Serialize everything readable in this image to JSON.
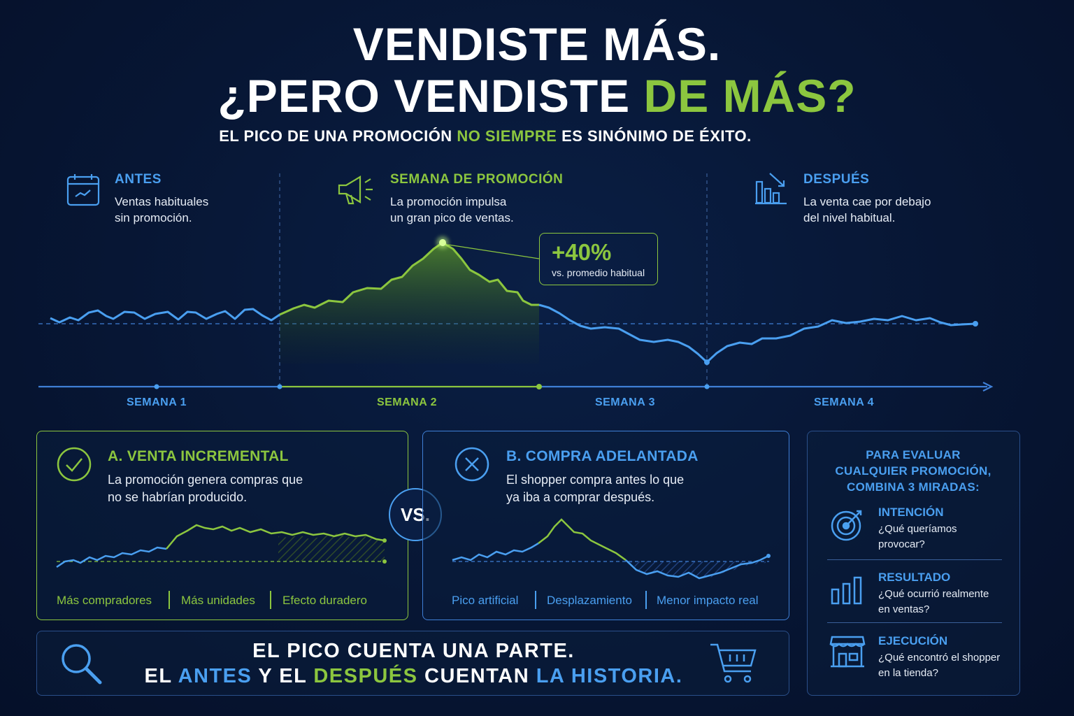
{
  "title": {
    "line1": "VENDISTE MÁS.",
    "line2_prefix": "¿PERO VENDISTE ",
    "line2_highlight": "DE MÁS?"
  },
  "subtitle": {
    "part1": "EL PICO DE UNA PROMOCIÓN ",
    "highlight": "NO SIEMPRE",
    "part2": " ES SINÓNIMO DE ÉXITO."
  },
  "sections": [
    {
      "icon": "calendar-icon",
      "title": "ANTES",
      "desc_line1": "Ventas habituales",
      "desc_line2": "sin promoción."
    },
    {
      "icon": "megaphone-icon",
      "title": "SEMANA DE PROMOCIÓN",
      "desc_line1": "La promoción impulsa",
      "desc_line2": "un gran pico de ventas."
    },
    {
      "icon": "declining-bars-icon",
      "title": "DESPUÉS",
      "desc_line1": "La venta cae por debajo",
      "desc_line2": "del nivel habitual."
    }
  ],
  "callout": {
    "value": "+40%",
    "label": "vs. promedio habitual"
  },
  "weeks": [
    "SEMANA 1",
    "SEMANA 2",
    "SEMANA 3",
    "SEMANA 4"
  ],
  "cards": {
    "a": {
      "icon": "check-circle-icon",
      "title": "A. VENTA INCREMENTAL",
      "desc_line1": "La promoción genera compras que",
      "desc_line2": "no se habrían producido.",
      "tags": [
        "Más compradores",
        "Más unidades",
        "Efecto duradero"
      ]
    },
    "b": {
      "icon": "x-circle-icon",
      "title": "B. COMPRA ADELANTADA",
      "desc_line1": "El shopper compra antes lo que",
      "desc_line2": "ya iba a comprar después.",
      "tags": [
        "Pico artificial",
        "Desplazamiento",
        "Menor impacto real"
      ]
    }
  },
  "vs_label": "VS.",
  "bottom": {
    "line1": "EL PICO CUENTA UNA PARTE.",
    "line2": [
      {
        "text": "EL ",
        "color": "white"
      },
      {
        "text": "ANTES",
        "color": "blue"
      },
      {
        "text": " Y EL ",
        "color": "white"
      },
      {
        "text": "DESPUÉS",
        "color": "green"
      },
      {
        "text": " CUENTAN ",
        "color": "white"
      },
      {
        "text": "LA HISTORIA.",
        "color": "blue"
      }
    ]
  },
  "side": {
    "title_line1": "PARA EVALUAR",
    "title_line2": "CUALQUIER PROMOCIÓN,",
    "title_line3": "COMBINA 3 MIRADAS:",
    "items": [
      {
        "icon": "target-icon",
        "title": "INTENCIÓN",
        "desc_line1": "¿Qué queríamos",
        "desc_line2": "provocar?"
      },
      {
        "icon": "bar-chart-icon",
        "title": "RESULTADO",
        "desc_line1": "¿Qué ocurrió realmente",
        "desc_line2": "en ventas?"
      },
      {
        "icon": "store-icon",
        "title": "EJECUCIÓN",
        "desc_line1": "¿Qué encontró el shopper",
        "desc_line2": "en la tienda?"
      }
    ]
  },
  "colors": {
    "green": "#8cc63f",
    "blue": "#4a9ff0",
    "background": "#071634"
  }
}
